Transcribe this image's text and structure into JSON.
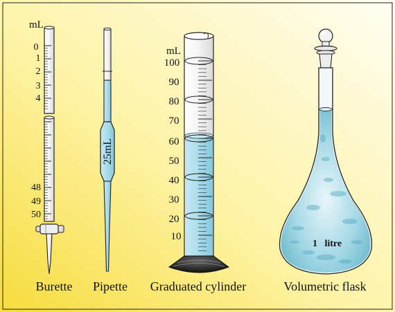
{
  "burette": {
    "label": "Burette",
    "unit": "mL",
    "top_ticks": [
      "0",
      "1",
      "2",
      "3",
      "4"
    ],
    "bottom_ticks": [
      "48",
      "49",
      "50"
    ]
  },
  "pipette": {
    "label": "Pipette",
    "volume_text": "25mL"
  },
  "cylinder": {
    "label": "Graduated cylinder",
    "unit": "mL",
    "ticks": [
      "100",
      "90",
      "80",
      "70",
      "60",
      "50",
      "40",
      "30",
      "20",
      "10"
    ]
  },
  "flask": {
    "label": "Volumetric flask",
    "volume_text": "1   litre"
  },
  "colors": {
    "background_light": "#fffce8",
    "background_yellow": "#f8e24a",
    "liquid": "#9fd3e6",
    "liquid_flask": "#7fc6d6"
  }
}
